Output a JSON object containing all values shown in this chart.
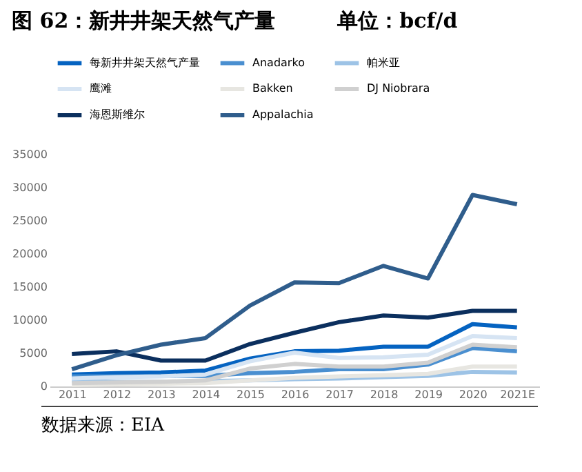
{
  "chart_data": {
    "type": "line",
    "title": "图 62：新井井架天然气产量　　　单位：bcf/d",
    "annotations": [
      "数据来源：EIA"
    ],
    "categories": [
      "2011",
      "2012",
      "2013",
      "2014",
      "2015",
      "2016",
      "2017",
      "2018",
      "2019",
      "2020",
      "2021E"
    ],
    "ylim": [
      0,
      35000
    ],
    "yticks": [
      0,
      5000,
      10000,
      15000,
      20000,
      25000,
      30000,
      35000
    ],
    "grid": false,
    "legend": "top",
    "line_style": "solid",
    "marker": "none",
    "series": [
      {
        "name": "每新井井架天然气产量",
        "color": "#0563c1",
        "values": [
          1800,
          2000,
          2100,
          2400,
          4200,
          5300,
          5400,
          6000,
          6000,
          9400,
          8900
        ]
      },
      {
        "name": "Anadarko",
        "color": "#4a8fd0",
        "values": [
          1500,
          1500,
          1600,
          1600,
          2000,
          2200,
          2600,
          2600,
          3300,
          5800,
          5300
        ]
      },
      {
        "name": "帕米亚",
        "color": "#9dc3e6",
        "values": [
          800,
          700,
          700,
          800,
          900,
          1100,
          1200,
          1400,
          1600,
          2200,
          2100
        ]
      },
      {
        "name": "鹰滩",
        "color": "#d6e4f3",
        "values": [
          1200,
          1400,
          1500,
          1800,
          3800,
          5100,
          4300,
          4400,
          4800,
          7600,
          7300
        ]
      },
      {
        "name": "Bakken",
        "color": "#e7e6e1",
        "values": [
          200,
          300,
          400,
          500,
          900,
          1300,
          1500,
          1700,
          1900,
          3000,
          3000
        ]
      },
      {
        "name": "DJ Niobrara",
        "color": "#d0d0d0",
        "values": [
          500,
          600,
          700,
          900,
          2700,
          3400,
          3000,
          3000,
          3600,
          6300,
          5900
        ]
      },
      {
        "name": "海恩斯维尔",
        "color": "#0b2f5e",
        "values": [
          4900,
          5300,
          3900,
          3900,
          6400,
          8100,
          9700,
          10700,
          10400,
          11400,
          11400
        ]
      },
      {
        "name": "Appalachia",
        "color": "#2f5d8c",
        "values": [
          2600,
          4700,
          6300,
          7300,
          12200,
          15700,
          15600,
          18200,
          16300,
          28900,
          27500
        ]
      }
    ]
  }
}
